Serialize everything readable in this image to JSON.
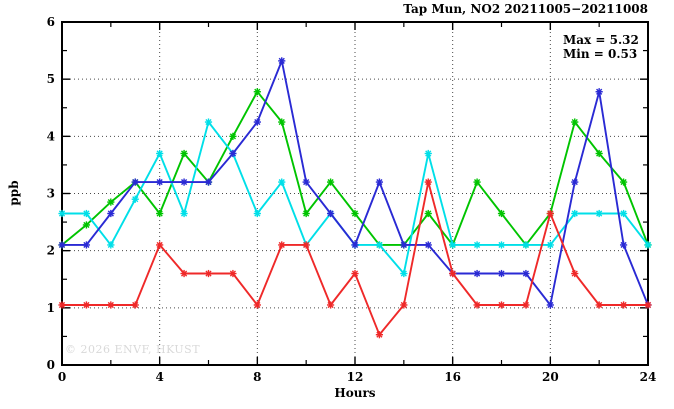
{
  "window": {
    "kind": "gnuplot-style time series chart"
  },
  "chart_data": {
    "type": "line",
    "title": "Tap Mun, NO2 20211005−20211008",
    "annotation_max": "Max = 5.32",
    "annotation_min": "Min = 0.53",
    "watermark": "© 2026 ENVF, HKUST",
    "xlabel": "Hours",
    "ylabel": "ppb",
    "xlim": [
      0,
      24
    ],
    "ylim": [
      0,
      6
    ],
    "xticks_major": [
      0,
      4,
      8,
      12,
      16,
      20,
      24
    ],
    "xticks_minor": [
      2,
      6,
      10,
      14,
      18,
      22
    ],
    "yticks_major": [
      0,
      1,
      2,
      3,
      4,
      5,
      6
    ],
    "yticks_minor": [
      0.5,
      1.5,
      2.5,
      3.5,
      4.5,
      5.5
    ],
    "grid_x": [
      4,
      8,
      12,
      16,
      20
    ],
    "grid_y": [
      1,
      2,
      3,
      4,
      5
    ],
    "grid_style": "dotted",
    "legend": "none",
    "marker": "asterisk",
    "x": [
      0,
      1,
      2,
      3,
      4,
      5,
      6,
      7,
      8,
      9,
      10,
      11,
      12,
      13,
      14,
      15,
      16,
      17,
      18,
      19,
      20,
      21,
      22,
      23,
      24
    ],
    "series": [
      {
        "name": "series-green",
        "color": "#00c400",
        "values": [
          2.1,
          2.45,
          2.85,
          3.2,
          2.65,
          3.7,
          3.2,
          4.0,
          4.78,
          4.25,
          2.65,
          3.2,
          2.65,
          2.1,
          2.1,
          2.65,
          2.1,
          3.2,
          2.65,
          2.1,
          2.65,
          4.25,
          3.7,
          3.2,
          2.1
        ]
      },
      {
        "name": "series-cyan",
        "color": "#00dfe8",
        "values": [
          2.65,
          2.65,
          2.1,
          2.9,
          3.7,
          2.65,
          4.25,
          3.7,
          2.65,
          3.2,
          2.1,
          2.65,
          2.1,
          2.1,
          1.6,
          3.7,
          2.1,
          2.1,
          2.1,
          2.1,
          2.1,
          2.65,
          2.65,
          2.65,
          2.1
        ]
      },
      {
        "name": "series-blue",
        "color": "#2a2ad4",
        "values": [
          2.1,
          2.1,
          2.65,
          3.2,
          3.2,
          3.2,
          3.2,
          3.7,
          4.25,
          5.32,
          3.2,
          2.65,
          2.1,
          3.2,
          2.1,
          2.1,
          1.6,
          1.6,
          1.6,
          1.6,
          1.05,
          3.2,
          4.78,
          2.1,
          1.05
        ]
      },
      {
        "name": "series-red",
        "color": "#ef2929",
        "values": [
          1.05,
          1.05,
          1.05,
          1.05,
          2.1,
          1.6,
          1.6,
          1.6,
          1.05,
          2.1,
          2.1,
          1.05,
          1.6,
          0.53,
          1.05,
          3.2,
          1.6,
          1.05,
          1.05,
          1.05,
          2.65,
          1.6,
          1.05,
          1.05,
          1.05
        ]
      }
    ],
    "axis_color": "#000000",
    "grid_color": "#4a4a4a"
  }
}
